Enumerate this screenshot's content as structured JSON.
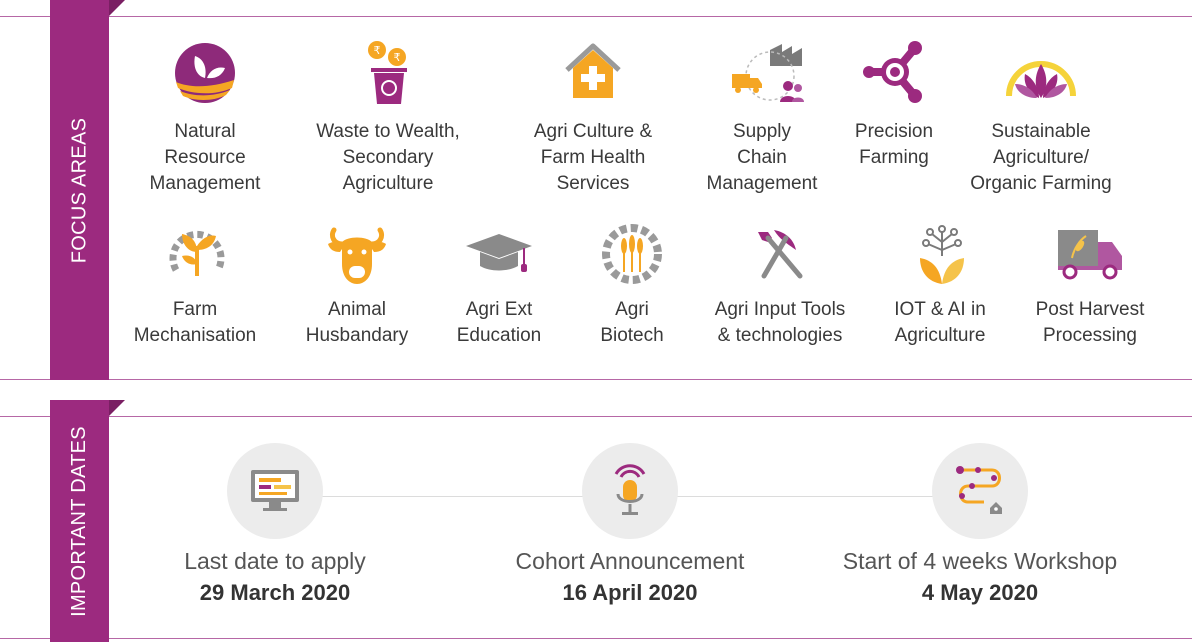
{
  "focus_areas": {
    "heading": "FOCUS AREAS",
    "items": [
      {
        "lines": [
          "Natural",
          "Resource",
          "Management"
        ],
        "icon": "leaf-wave-icon"
      },
      {
        "lines": [
          "Waste to Wealth,",
          "Secondary",
          "Agriculture"
        ],
        "icon": "recycle-bin-coins-icon"
      },
      {
        "lines": [
          "Agri Culture &",
          "Farm Health",
          "Services"
        ],
        "icon": "health-house-icon"
      },
      {
        "lines": [
          "Supply",
          "Chain",
          "Management"
        ],
        "icon": "supply-chain-icon"
      },
      {
        "lines": [
          "Precision",
          "Farming"
        ],
        "icon": "precision-target-icon"
      },
      {
        "lines": [
          "Sustainable",
          "Agriculture/",
          "Organic Farming"
        ],
        "icon": "lotus-sun-icon"
      },
      {
        "lines": [
          "Farm",
          "Mechanisation"
        ],
        "icon": "gear-plant-icon"
      },
      {
        "lines": [
          "Animal",
          "Husbandary"
        ],
        "icon": "cow-icon"
      },
      {
        "lines": [
          "Agri Ext",
          "Education"
        ],
        "icon": "graduation-cap-icon"
      },
      {
        "lines": [
          "Agri",
          "Biotech"
        ],
        "icon": "gear-wheat-icon"
      },
      {
        "lines": [
          "Agri Input Tools",
          "& technologies"
        ],
        "icon": "shovel-pickaxe-icon"
      },
      {
        "lines": [
          "IOT & AI in",
          "Agriculture"
        ],
        "icon": "iot-plant-icon"
      },
      {
        "lines": [
          "Post Harvest",
          "Processing"
        ],
        "icon": "delivery-truck-icon"
      }
    ]
  },
  "important_dates": {
    "heading": "IMPORTANT DATES",
    "items": [
      {
        "title": "Last date to apply",
        "date": "29 March 2020",
        "icon": "monitor-icon"
      },
      {
        "title": "Cohort Announcement",
        "date": "16 April 2020",
        "icon": "microphone-icon"
      },
      {
        "title": "Start of 4 weeks Workshop",
        "date": "4 May 2020",
        "icon": "roadmap-path-icon"
      }
    ]
  },
  "colors": {
    "brand_purple": "#9c2a7f",
    "accent_orange": "#f5a623",
    "text_dark": "#3a3a3a",
    "circle_grey": "#ececec"
  }
}
